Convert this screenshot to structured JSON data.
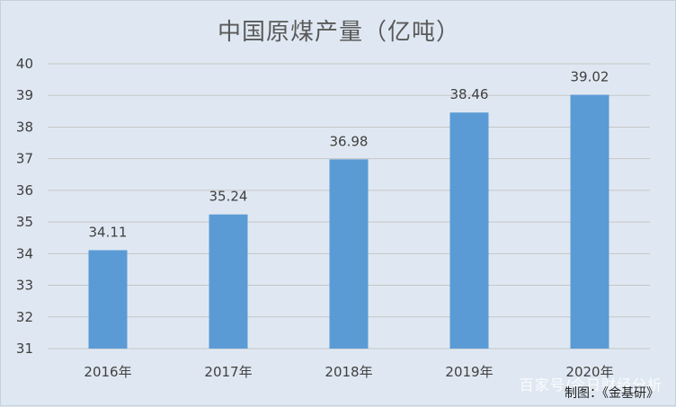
{
  "chart_data": {
    "type": "bar",
    "title": "中国原煤产量（亿吨）",
    "categories": [
      "2016年",
      "2017年",
      "2018年",
      "2019年",
      "2020年"
    ],
    "values": [
      34.11,
      35.24,
      36.98,
      38.46,
      39.02
    ],
    "value_labels": [
      "34.11",
      "35.24",
      "36.98",
      "38.46",
      "39.02"
    ],
    "ylim": [
      31,
      40
    ],
    "yticks": [
      31,
      32,
      33,
      34,
      35,
      36,
      37,
      38,
      39,
      40
    ],
    "grid": true,
    "legend": "none",
    "bar_color": "#5b9bd5"
  },
  "credit": "制图：《金基研》",
  "watermark": "百家号/今日财经分析"
}
